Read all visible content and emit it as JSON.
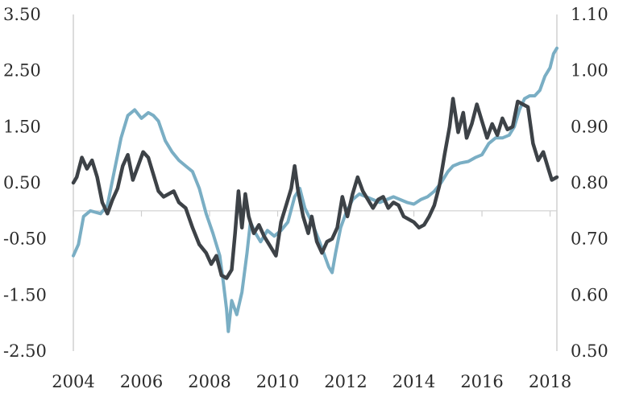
{
  "chart_data": {
    "type": "line",
    "title": "",
    "xlabel": "",
    "ylabel_left": "",
    "ylabel_right": "",
    "x_ticks": [
      "2004",
      "2006",
      "2008",
      "2010",
      "2012",
      "2014",
      "2016",
      "2018"
    ],
    "x_range": [
      2004,
      2018.2
    ],
    "y_left_ticks": [
      "3.50",
      "2.50",
      "1.50",
      "0.50",
      "-0.50",
      "-1.50",
      "-2.50"
    ],
    "y_left_range": [
      -2.5,
      3.5
    ],
    "y_right_ticks": [
      "1.10",
      "1.00",
      "0.90",
      "0.80",
      "0.70",
      "0.60",
      "0.50"
    ],
    "y_right_range": [
      0.5,
      1.1
    ],
    "grid": false,
    "legend": "none",
    "series": [
      {
        "axis": "right",
        "color": "#7aaec4",
        "points": [
          [
            2004.0,
            0.67
          ],
          [
            2004.15,
            0.69
          ],
          [
            2004.3,
            0.74
          ],
          [
            2004.5,
            0.75
          ],
          [
            2004.8,
            0.745
          ],
          [
            2005.0,
            0.76
          ],
          [
            2005.2,
            0.82
          ],
          [
            2005.4,
            0.88
          ],
          [
            2005.6,
            0.92
          ],
          [
            2005.8,
            0.93
          ],
          [
            2006.0,
            0.915
          ],
          [
            2006.2,
            0.925
          ],
          [
            2006.35,
            0.92
          ],
          [
            2006.5,
            0.91
          ],
          [
            2006.7,
            0.875
          ],
          [
            2006.9,
            0.855
          ],
          [
            2007.1,
            0.84
          ],
          [
            2007.3,
            0.83
          ],
          [
            2007.5,
            0.82
          ],
          [
            2007.7,
            0.79
          ],
          [
            2007.9,
            0.745
          ],
          [
            2008.1,
            0.71
          ],
          [
            2008.3,
            0.67
          ],
          [
            2008.4,
            0.625
          ],
          [
            2008.5,
            0.575
          ],
          [
            2008.55,
            0.535
          ],
          [
            2008.65,
            0.59
          ],
          [
            2008.8,
            0.565
          ],
          [
            2008.95,
            0.605
          ],
          [
            2009.1,
            0.675
          ],
          [
            2009.2,
            0.73
          ],
          [
            2009.35,
            0.71
          ],
          [
            2009.5,
            0.695
          ],
          [
            2009.7,
            0.715
          ],
          [
            2009.9,
            0.705
          ],
          [
            2010.1,
            0.715
          ],
          [
            2010.3,
            0.73
          ],
          [
            2010.5,
            0.775
          ],
          [
            2010.65,
            0.79
          ],
          [
            2010.8,
            0.755
          ],
          [
            2011.0,
            0.73
          ],
          [
            2011.2,
            0.7
          ],
          [
            2011.35,
            0.675
          ],
          [
            2011.5,
            0.65
          ],
          [
            2011.6,
            0.64
          ],
          [
            2011.7,
            0.675
          ],
          [
            2011.85,
            0.72
          ],
          [
            2012.0,
            0.745
          ],
          [
            2012.2,
            0.77
          ],
          [
            2012.4,
            0.78
          ],
          [
            2012.6,
            0.775
          ],
          [
            2012.8,
            0.77
          ],
          [
            2013.0,
            0.765
          ],
          [
            2013.2,
            0.77
          ],
          [
            2013.4,
            0.775
          ],
          [
            2013.6,
            0.77
          ],
          [
            2013.8,
            0.765
          ],
          [
            2014.0,
            0.762
          ],
          [
            2014.2,
            0.77
          ],
          [
            2014.4,
            0.775
          ],
          [
            2014.6,
            0.785
          ],
          [
            2014.8,
            0.8
          ],
          [
            2015.0,
            0.82
          ],
          [
            2015.15,
            0.83
          ],
          [
            2015.35,
            0.835
          ],
          [
            2015.6,
            0.838
          ],
          [
            2015.8,
            0.845
          ],
          [
            2016.0,
            0.85
          ],
          [
            2016.2,
            0.87
          ],
          [
            2016.4,
            0.88
          ],
          [
            2016.6,
            0.88
          ],
          [
            2016.8,
            0.885
          ],
          [
            2016.95,
            0.9
          ],
          [
            2017.1,
            0.93
          ],
          [
            2017.25,
            0.95
          ],
          [
            2017.4,
            0.955
          ],
          [
            2017.55,
            0.955
          ],
          [
            2017.7,
            0.965
          ],
          [
            2017.85,
            0.99
          ],
          [
            2018.0,
            1.005
          ],
          [
            2018.1,
            1.03
          ],
          [
            2018.2,
            1.04
          ]
        ]
      },
      {
        "axis": "left",
        "color": "#3d4247",
        "points": [
          [
            2004.0,
            0.5
          ],
          [
            2004.1,
            0.6
          ],
          [
            2004.25,
            0.95
          ],
          [
            2004.4,
            0.75
          ],
          [
            2004.55,
            0.9
          ],
          [
            2004.7,
            0.6
          ],
          [
            2004.85,
            0.15
          ],
          [
            2005.0,
            -0.05
          ],
          [
            2005.15,
            0.2
          ],
          [
            2005.3,
            0.4
          ],
          [
            2005.45,
            0.8
          ],
          [
            2005.6,
            1.0
          ],
          [
            2005.75,
            0.55
          ],
          [
            2005.9,
            0.8
          ],
          [
            2006.05,
            1.05
          ],
          [
            2006.2,
            0.95
          ],
          [
            2006.35,
            0.65
          ],
          [
            2006.5,
            0.35
          ],
          [
            2006.65,
            0.25
          ],
          [
            2006.8,
            0.3
          ],
          [
            2006.95,
            0.35
          ],
          [
            2007.1,
            0.15
          ],
          [
            2007.3,
            0.05
          ],
          [
            2007.5,
            -0.3
          ],
          [
            2007.7,
            -0.6
          ],
          [
            2007.9,
            -0.75
          ],
          [
            2008.05,
            -0.95
          ],
          [
            2008.2,
            -0.8
          ],
          [
            2008.35,
            -1.15
          ],
          [
            2008.5,
            -1.2
          ],
          [
            2008.65,
            -1.05
          ],
          [
            2008.75,
            -0.4
          ],
          [
            2008.85,
            0.35
          ],
          [
            2008.95,
            -0.3
          ],
          [
            2009.05,
            0.3
          ],
          [
            2009.15,
            -0.1
          ],
          [
            2009.3,
            -0.4
          ],
          [
            2009.45,
            -0.25
          ],
          [
            2009.6,
            -0.45
          ],
          [
            2009.8,
            -0.65
          ],
          [
            2009.95,
            -0.8
          ],
          [
            2010.1,
            -0.2
          ],
          [
            2010.25,
            0.1
          ],
          [
            2010.4,
            0.4
          ],
          [
            2010.5,
            0.8
          ],
          [
            2010.6,
            0.35
          ],
          [
            2010.75,
            -0.1
          ],
          [
            2010.9,
            -0.4
          ],
          [
            2011.0,
            -0.1
          ],
          [
            2011.15,
            -0.55
          ],
          [
            2011.3,
            -0.75
          ],
          [
            2011.45,
            -0.55
          ],
          [
            2011.6,
            -0.5
          ],
          [
            2011.75,
            -0.3
          ],
          [
            2011.9,
            0.25
          ],
          [
            2012.05,
            -0.1
          ],
          [
            2012.2,
            0.3
          ],
          [
            2012.35,
            0.6
          ],
          [
            2012.5,
            0.35
          ],
          [
            2012.65,
            0.2
          ],
          [
            2012.8,
            0.05
          ],
          [
            2012.95,
            0.2
          ],
          [
            2013.1,
            0.25
          ],
          [
            2013.25,
            0.05
          ],
          [
            2013.4,
            0.15
          ],
          [
            2013.55,
            0.1
          ],
          [
            2013.7,
            -0.1
          ],
          [
            2013.85,
            -0.15
          ],
          [
            2014.0,
            -0.2
          ],
          [
            2014.15,
            -0.3
          ],
          [
            2014.3,
            -0.25
          ],
          [
            2014.45,
            -0.1
          ],
          [
            2014.6,
            0.1
          ],
          [
            2014.75,
            0.45
          ],
          [
            2014.9,
            1.0
          ],
          [
            2015.05,
            1.5
          ],
          [
            2015.15,
            2.0
          ],
          [
            2015.3,
            1.4
          ],
          [
            2015.45,
            1.75
          ],
          [
            2015.55,
            1.3
          ],
          [
            2015.7,
            1.55
          ],
          [
            2015.85,
            1.9
          ],
          [
            2016.0,
            1.6
          ],
          [
            2016.15,
            1.3
          ],
          [
            2016.3,
            1.55
          ],
          [
            2016.45,
            1.35
          ],
          [
            2016.6,
            1.65
          ],
          [
            2016.75,
            1.45
          ],
          [
            2016.9,
            1.5
          ],
          [
            2017.05,
            1.95
          ],
          [
            2017.2,
            1.9
          ],
          [
            2017.35,
            1.85
          ],
          [
            2017.5,
            1.2
          ],
          [
            2017.65,
            0.9
          ],
          [
            2017.8,
            1.05
          ],
          [
            2017.95,
            0.75
          ],
          [
            2018.05,
            0.55
          ],
          [
            2018.2,
            0.6
          ]
        ]
      }
    ]
  }
}
